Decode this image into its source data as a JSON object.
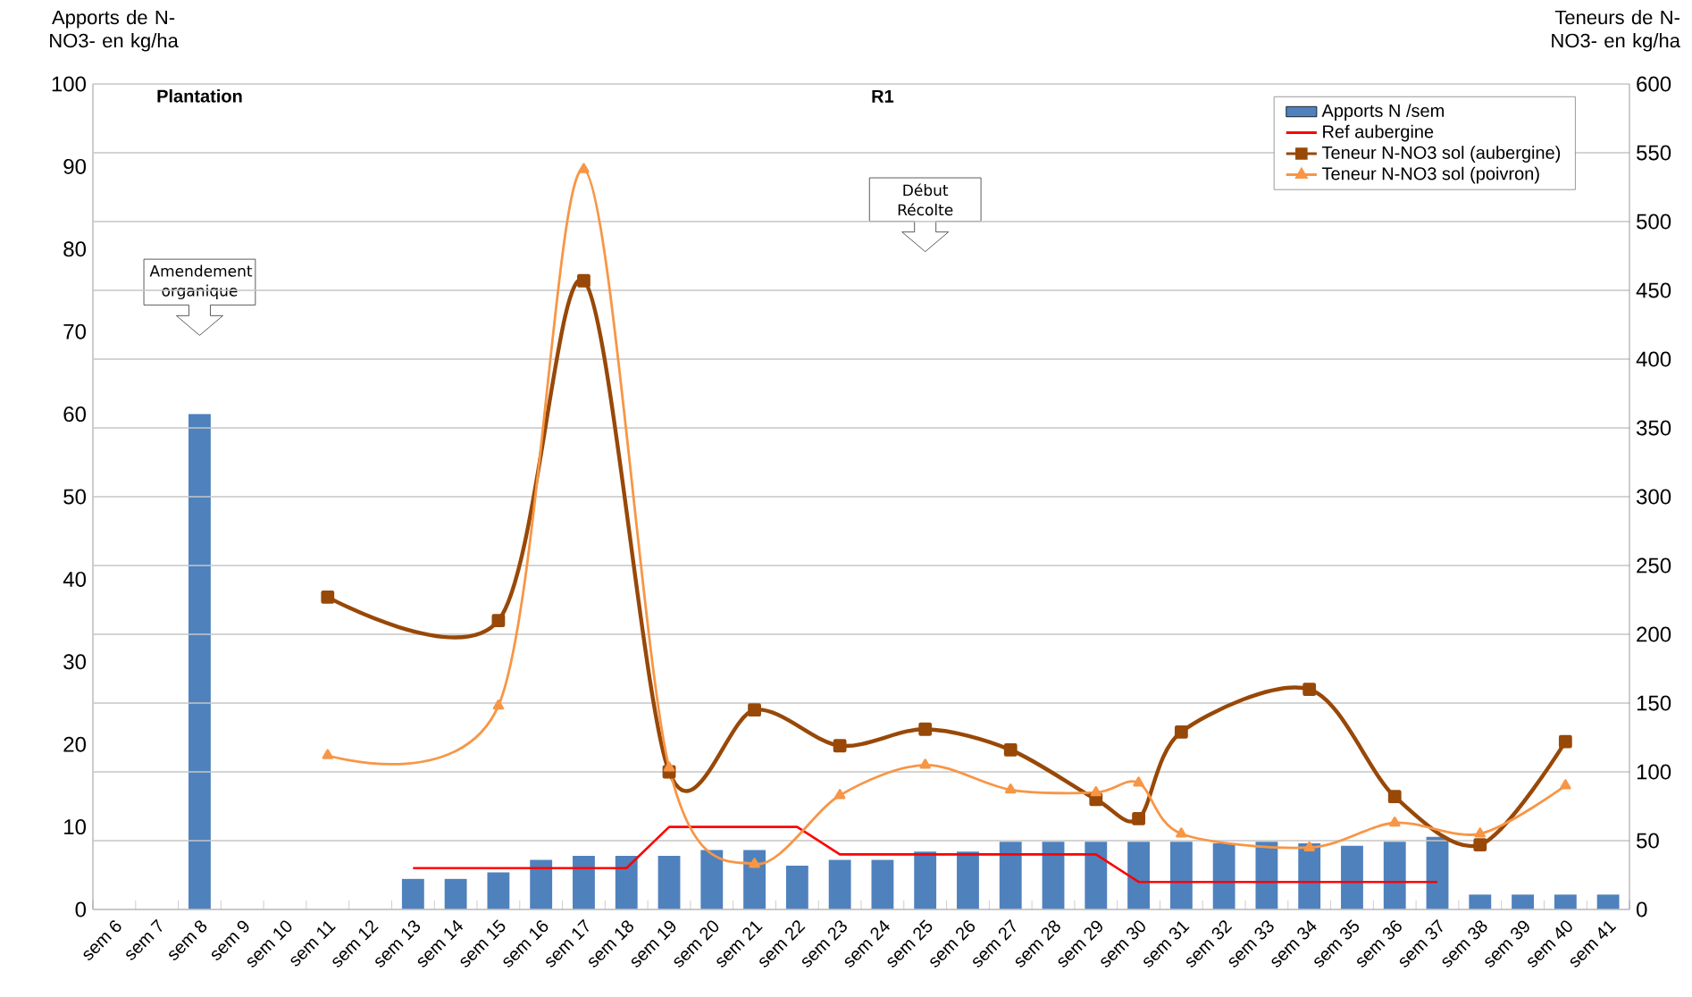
{
  "chart_data": {
    "type": "bar",
    "ylabel": "Apports de N-NO3- en kg/ha",
    "y2label": "Teneurs de N-NO3- en kg/ha",
    "annotations": [
      "Plantation",
      "R1",
      "Amendement organique",
      "Début Récolte"
    ],
    "categories": [
      "sem 6",
      "sem 7",
      "sem 8",
      "sem 9",
      "sem 10",
      "sem 11",
      "sem 12",
      "sem 13",
      "sem 14",
      "sem 15",
      "sem 16",
      "sem 17",
      "sem 18",
      "sem 19",
      "sem 20",
      "sem 21",
      "sem 22",
      "sem 23",
      "sem 24",
      "sem 25",
      "sem 26",
      "sem 27",
      "sem 28",
      "sem 29",
      "sem 30",
      "sem 31",
      "sem 32",
      "sem 33",
      "sem 34",
      "sem 35",
      "sem 36",
      "sem 37",
      "sem 38",
      "sem 39",
      "sem 40",
      "sem 41"
    ],
    "series": [
      {
        "name": "Apports N /sem",
        "color": "#4f81bd",
        "values": [
          null,
          null,
          60,
          null,
          null,
          null,
          null,
          3.7,
          3.7,
          4.5,
          6,
          6.5,
          6.5,
          6.5,
          7.2,
          7.2,
          5.3,
          6,
          6,
          7,
          7,
          8.2,
          8.2,
          8.2,
          8.2,
          8.2,
          8,
          8.2,
          8,
          7.7,
          8.2,
          8.8,
          1.8,
          1.8,
          1.8,
          1.8
        ]
      },
      {
        "name": "Ref aubergine",
        "type": "line",
        "axis": "y2",
        "color": "#ff0000",
        "marker": "none",
        "values": [
          null,
          null,
          null,
          null,
          null,
          null,
          null,
          30,
          30,
          30,
          30,
          30,
          30,
          60,
          60,
          60,
          60,
          40,
          40,
          40,
          40,
          40,
          40,
          40,
          20,
          20,
          20,
          20,
          20,
          20,
          20,
          20,
          null,
          null,
          null,
          null
        ]
      },
      {
        "name": "Teneur N-NO3 sol (aubergine)",
        "type": "line",
        "axis": "y2",
        "color": "#984807",
        "marker": "square",
        "values": [
          null,
          null,
          null,
          null,
          null,
          227,
          null,
          null,
          null,
          210,
          null,
          457,
          null,
          100,
          null,
          145,
          null,
          119,
          null,
          131,
          null,
          116,
          null,
          80,
          66,
          129,
          null,
          null,
          160,
          null,
          82,
          null,
          47,
          null,
          122,
          null
        ]
      },
      {
        "name": "Teneur N-NO3 sol (poivron)",
        "type": "line",
        "axis": "y2",
        "color": "#f79646",
        "marker": "triangle",
        "values": [
          null,
          null,
          null,
          null,
          null,
          112,
          null,
          null,
          null,
          148,
          null,
          538,
          null,
          103,
          null,
          33,
          null,
          83,
          null,
          105,
          null,
          87,
          null,
          85,
          92,
          55,
          null,
          null,
          45,
          null,
          63,
          null,
          55,
          null,
          90,
          null
        ]
      }
    ],
    "ylim": [
      0,
      100
    ],
    "yticks": [
      0,
      10,
      20,
      30,
      40,
      50,
      60,
      70,
      80,
      90,
      100
    ],
    "y2lim": [
      0,
      600
    ],
    "y2ticks": [
      0,
      50,
      100,
      150,
      200,
      250,
      300,
      350,
      400,
      450,
      500,
      550,
      600
    ],
    "grid": true,
    "legend": "top right",
    "line_style": "solid"
  }
}
